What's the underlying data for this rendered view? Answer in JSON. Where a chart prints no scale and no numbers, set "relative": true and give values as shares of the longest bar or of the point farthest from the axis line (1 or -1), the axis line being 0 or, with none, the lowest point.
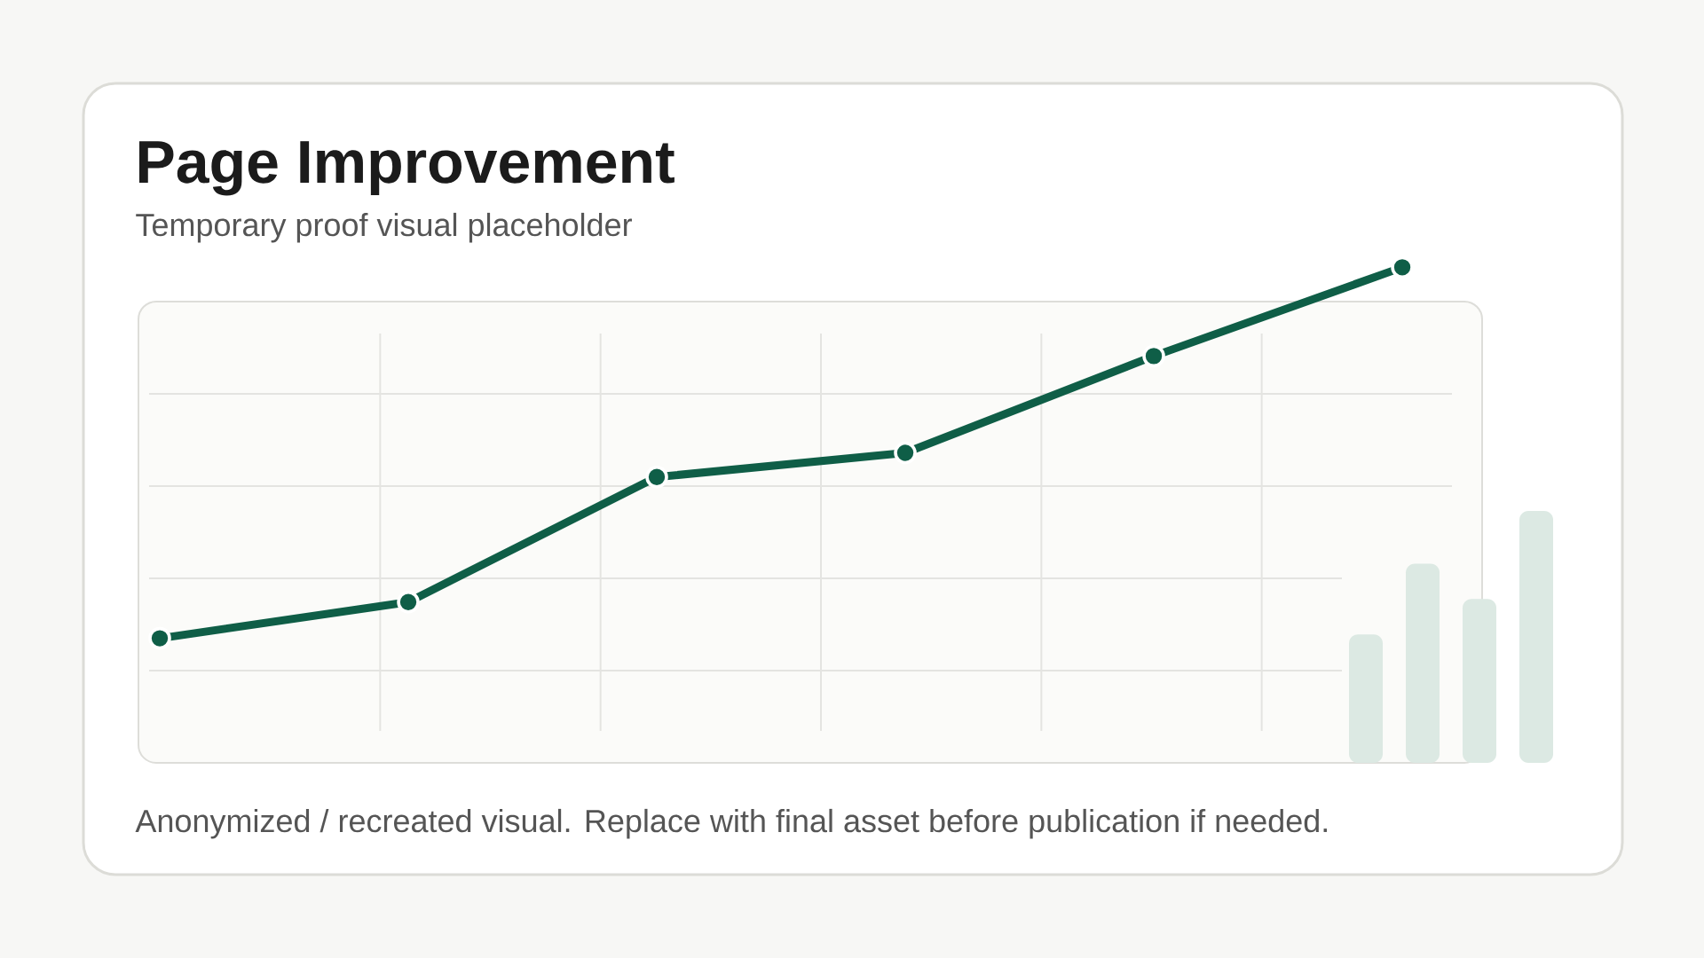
{
  "chart_data": [
    {
      "type": "line",
      "title": "Page Improvement",
      "subtitle": "Temporary proof visual placeholder",
      "categories": [
        null,
        null,
        null,
        null,
        null,
        null
      ],
      "values": [
        0.08,
        0.17,
        0.48,
        0.54,
        0.78,
        1
      ],
      "color": "#0f5e47",
      "relative": true,
      "marker": "circle",
      "line_style": "solid",
      "grid": true,
      "annotations": [
        "Anonymized / recreated visual. Replace with final asset before publication if needed."
      ]
    },
    {
      "type": "bar",
      "categories": [
        null,
        null,
        null,
        null
      ],
      "values": [
        0.51,
        0.79,
        0.65,
        1
      ],
      "color": "#dce9e3",
      "relative": true
    }
  ]
}
